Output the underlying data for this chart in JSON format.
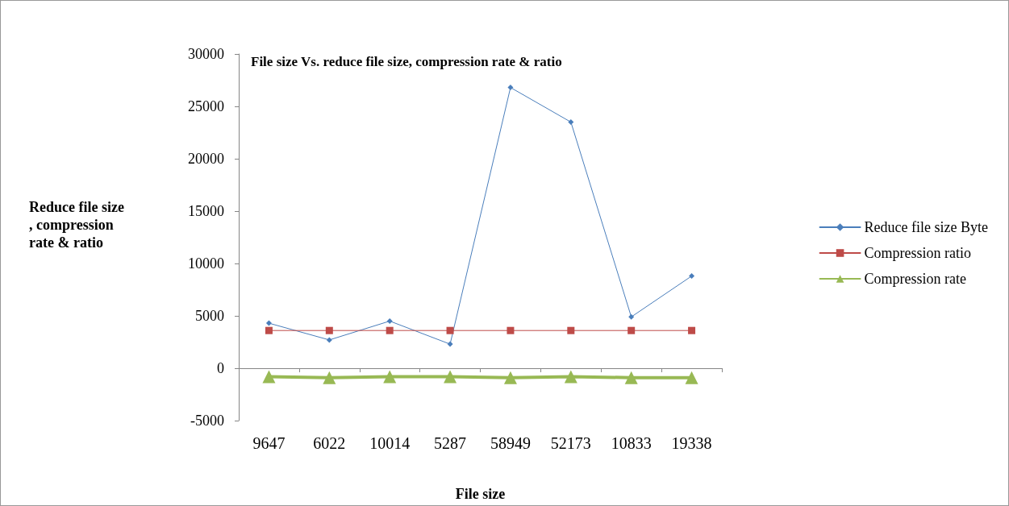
{
  "chart_data": {
    "type": "line",
    "title": "File size Vs. reduce file size, compression rate & ratio",
    "xlabel": "File size",
    "ylabel": "Reduce file size, compression rate & ratio",
    "categories": [
      "9647",
      "6022",
      "10014",
      "5287",
      "58949",
      "52173",
      "10833",
      "19338"
    ],
    "series": [
      {
        "name": "Reduce file size Byte",
        "color": "#4a7ebb",
        "marker": "diamond",
        "values": [
          4300,
          2700,
          4500,
          2300,
          26800,
          23500,
          4900,
          8800
        ]
      },
      {
        "name": "Compression ratio",
        "color": "#be4b48",
        "marker": "square",
        "values": [
          3600,
          3600,
          3600,
          3600,
          3600,
          3600,
          3600,
          3600
        ]
      },
      {
        "name": "Compression rate",
        "color": "#98b954",
        "marker": "triangle",
        "values": [
          -800,
          -900,
          -800,
          -800,
          -900,
          -800,
          -900,
          -900
        ]
      }
    ],
    "ylim": [
      -5000,
      30000
    ],
    "yticks": [
      -5000,
      0,
      5000,
      10000,
      15000,
      20000,
      25000,
      30000
    ],
    "legend": "right",
    "line_style": "solid"
  }
}
